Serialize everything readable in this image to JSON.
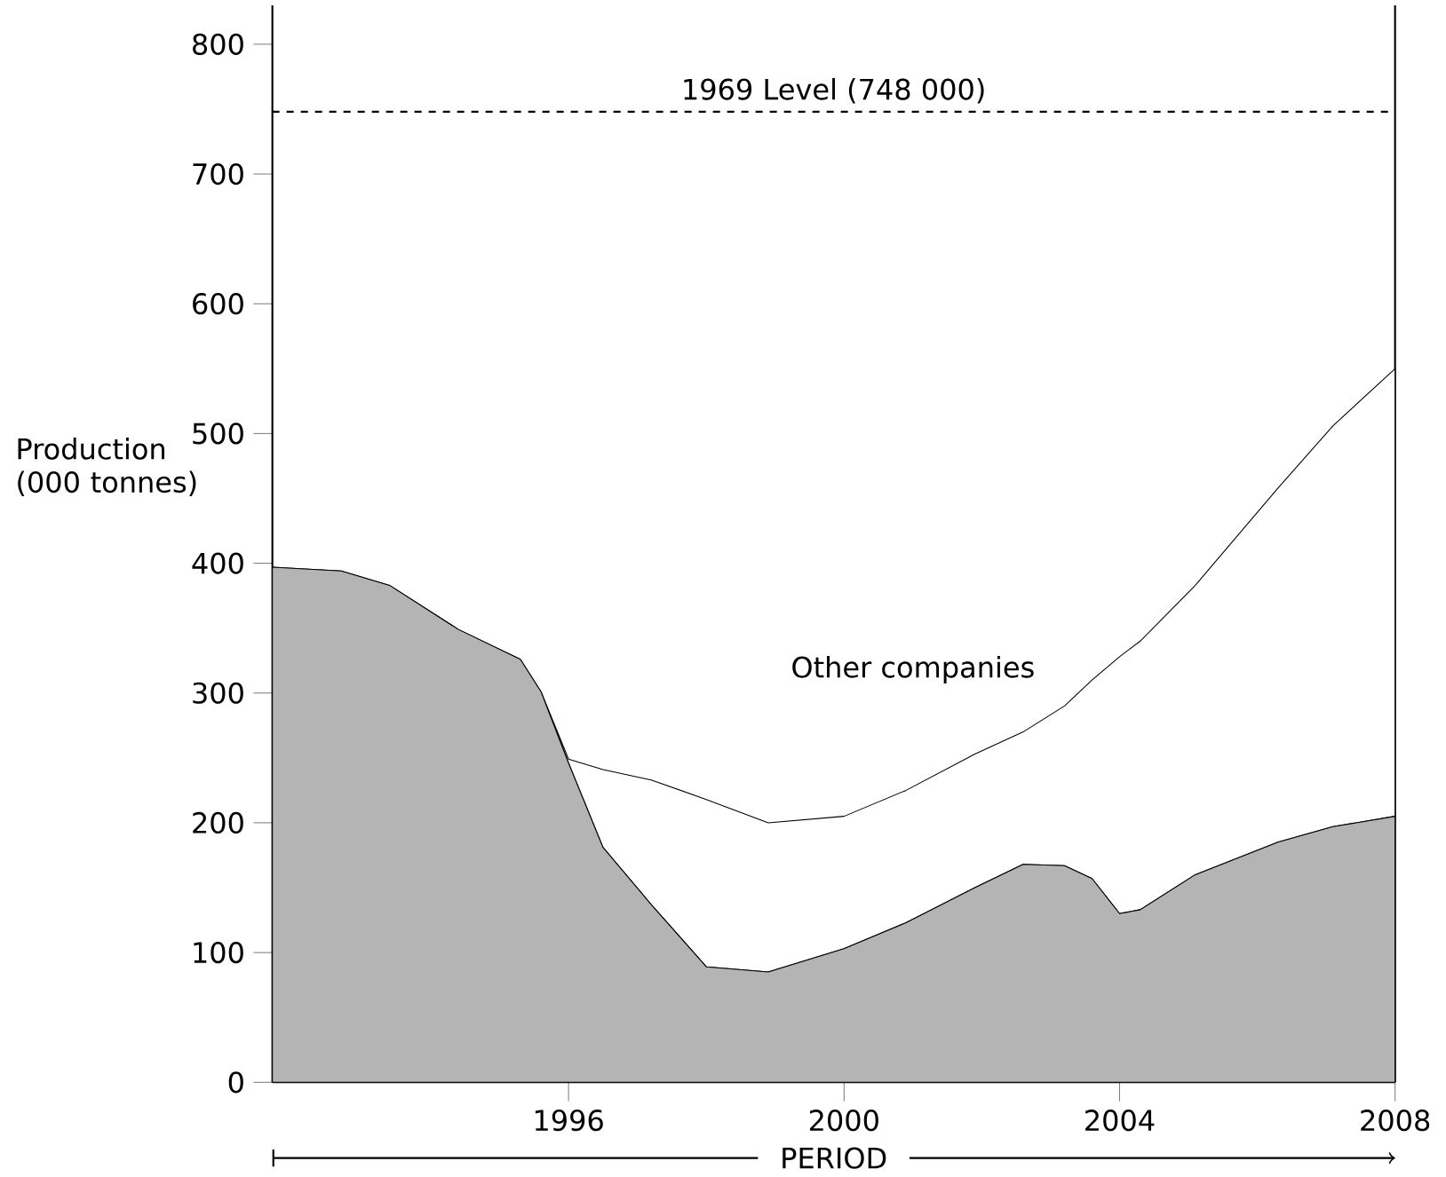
{
  "chart_data": {
    "type": "area",
    "stacked": true,
    "xlabel": "PERIOD",
    "ylabel": "Production (000 tonnes)",
    "x": [
      1991.7,
      1992.7,
      1993.4,
      1994.4,
      1995.3,
      1995.6,
      1996,
      1996.5,
      1997.2,
      1998,
      1998.9,
      2000,
      2000.9,
      2001.9,
      2002.6,
      2003.2,
      2003.6,
      2004,
      2004.3,
      2005.1,
      2006.3,
      2007.1,
      2008
    ],
    "series": [
      {
        "color": "#b4b4b4",
        "values": [
          397,
          394,
          383,
          349,
          326,
          301,
          246,
          181,
          137,
          89,
          85,
          103,
          123,
          150,
          168,
          167,
          157,
          130,
          133,
          160,
          185,
          197,
          205
        ]
      },
      {
        "name": "Other companies",
        "color": "#ffffff",
        "values": [
          0,
          0,
          0,
          0,
          0,
          0,
          3,
          60,
          96,
          129,
          115,
          102,
          102,
          103,
          102,
          123,
          153,
          198,
          207,
          223,
          273,
          309,
          345
        ]
      }
    ],
    "xlim": [
      1991.7,
      2008
    ],
    "xticks": [
      1996,
      2000,
      2004,
      2008
    ],
    "ylim": [
      0,
      830
    ],
    "yticks": [
      0,
      100,
      200,
      300,
      400,
      500,
      600,
      700,
      800
    ],
    "ref_lines": [
      {
        "axis": "y",
        "value": 748,
        "label": "1969 Level (748 000)",
        "line_style": "dashed"
      }
    ],
    "grid": false
  }
}
